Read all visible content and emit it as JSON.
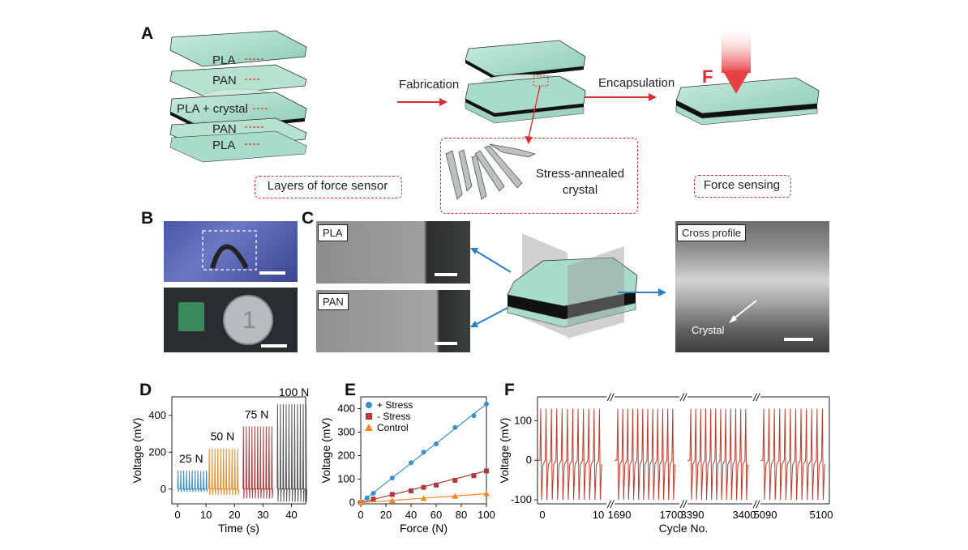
{
  "panels": {
    "A": "A",
    "B": "B",
    "C": "C",
    "D": "D",
    "E": "E",
    "F": "F"
  },
  "panelA": {
    "layers": [
      "PLA",
      "PAN",
      "PLA + crystal",
      "PAN",
      "PLA"
    ],
    "step1": "Fabrication",
    "step2": "Encapsulation",
    "force_symbol": "F",
    "caption_layers": "Layers of force sensor",
    "caption_crystal": "Stress-annealed crystal",
    "caption_sensing": "Force sensing"
  },
  "panelC": {
    "sem_top": "PLA",
    "sem_bottom": "PAN",
    "cross_title": "Cross profile",
    "cross_annotation": "Crystal"
  },
  "colors": {
    "sensor": "#a9dcc8",
    "arrow_red": "#d9302f",
    "blue_arrow": "#2b7fc6",
    "trace_red": "#c0392b"
  },
  "chart_data": [
    {
      "id": "D",
      "type": "line",
      "xlabel": "Time (s)",
      "ylabel": "Voltage (mV)",
      "xlim": [
        -2,
        45
      ],
      "ylim": [
        -80,
        500
      ],
      "xticks": [
        0,
        10,
        20,
        30,
        40
      ],
      "yticks": [
        0,
        200,
        400
      ],
      "series": [
        {
          "name": "25 N",
          "amplitude": 100,
          "x_range": [
            0,
            10
          ],
          "color": "#3a8fd1"
        },
        {
          "name": "50 N",
          "amplitude": 220,
          "x_range": [
            11,
            21
          ],
          "color": "#f08a24"
        },
        {
          "name": "75 N",
          "amplitude": 340,
          "x_range": [
            23,
            33
          ],
          "color": "#b03a3a"
        },
        {
          "name": "100 N",
          "amplitude": 460,
          "x_range": [
            35,
            45
          ],
          "color": "#555555"
        }
      ]
    },
    {
      "id": "E",
      "type": "scatter",
      "xlabel": "Force (N)",
      "ylabel": "Voltage (mV)",
      "xlim": [
        0,
        100
      ],
      "ylim": [
        -5,
        450
      ],
      "xticks": [
        0,
        20,
        40,
        60,
        80,
        100
      ],
      "yticks": [
        0,
        100,
        200,
        300,
        400
      ],
      "series": [
        {
          "name": "+ Stress",
          "marker": "circle",
          "color": "#3a8fd1",
          "x": [
            0,
            5,
            10,
            25,
            40,
            50,
            60,
            75,
            90,
            100
          ],
          "y": [
            0,
            20,
            40,
            105,
            170,
            215,
            250,
            320,
            370,
            420
          ]
        },
        {
          "name": "- Stress",
          "marker": "square",
          "color": "#b03a3a",
          "x": [
            0,
            10,
            25,
            40,
            50,
            60,
            75,
            90,
            100
          ],
          "y": [
            0,
            15,
            35,
            50,
            65,
            75,
            95,
            115,
            135
          ]
        },
        {
          "name": "Control",
          "marker": "triangle",
          "color": "#f08a24",
          "x": [
            0,
            25,
            50,
            75,
            100
          ],
          "y": [
            0,
            8,
            18,
            27,
            38
          ]
        }
      ]
    },
    {
      "id": "F",
      "type": "line",
      "xlabel": "Cycle No.",
      "ylabel": "Voltage (mV)",
      "ylim": [
        -110,
        160
      ],
      "yticks": [
        -100,
        0,
        100
      ],
      "segments": [
        {
          "x_ticks": [
            "0",
            "10"
          ]
        },
        {
          "x_ticks": [
            "1690",
            "1700"
          ]
        },
        {
          "x_ticks": [
            "3390",
            "3400"
          ]
        },
        {
          "x_ticks": [
            "5090",
            "5100"
          ]
        }
      ],
      "break_mark": "//",
      "peak_high": 130,
      "peak_low": -100
    }
  ]
}
